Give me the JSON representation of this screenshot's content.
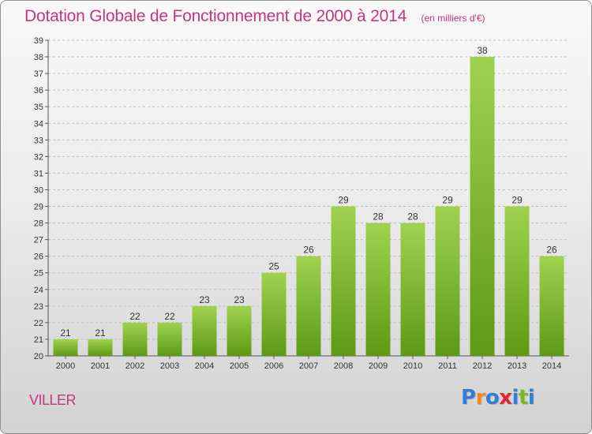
{
  "title": "Dotation Globale de Fonctionnement de 2000 à 2014",
  "subtitle": "(en milliers d'€)",
  "commune": "VILLER",
  "logo": {
    "text": "Proxiti",
    "letter_colors": [
      "#2f7fd6",
      "#f08a1c",
      "#2f7fd6",
      "#e3262d",
      "#2f7fd6",
      "#76b82a",
      "#2f7fd6"
    ]
  },
  "colors": {
    "accent": "#c0397e",
    "bar_light": "#9fd24f",
    "bar_dark": "#5e9a14",
    "grid": "#bdbdbd"
  },
  "chart_data": {
    "type": "bar",
    "categories": [
      "2000",
      "2001",
      "2002",
      "2003",
      "2004",
      "2005",
      "2006",
      "2007",
      "2008",
      "2009",
      "2010",
      "2011",
      "2012",
      "2013",
      "2014"
    ],
    "values": [
      21,
      21,
      22,
      22,
      23,
      23,
      25,
      26,
      29,
      28,
      28,
      29,
      38,
      29,
      26
    ],
    "data_labels": [
      "21",
      "21",
      "22",
      "22",
      "23",
      "23",
      "25",
      "26",
      "29",
      "28",
      "28",
      "29",
      "38",
      "29",
      "26"
    ],
    "y_ticks": [
      "20",
      "21",
      "22",
      "23",
      "24",
      "25",
      "26",
      "27",
      "28",
      "29",
      "30",
      "31",
      "32",
      "33",
      "34",
      "35",
      "36",
      "37",
      "38",
      "39"
    ],
    "ylim": [
      20,
      39
    ],
    "grid": true,
    "legend": "none"
  }
}
